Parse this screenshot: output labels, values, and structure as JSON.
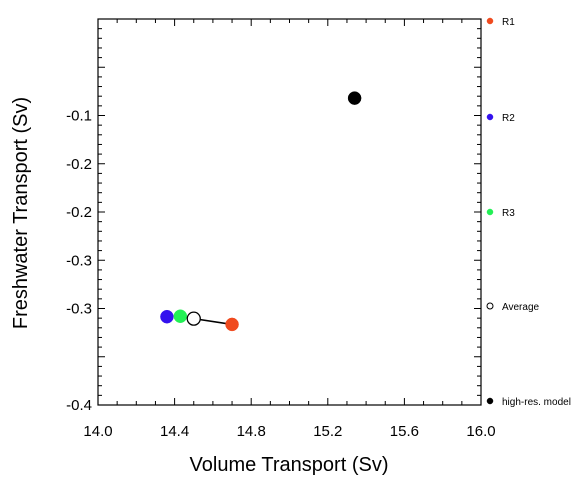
{
  "chart_data": {
    "type": "scatter",
    "title": "",
    "xlabel": "Volume Transport (Sv)",
    "ylabel": "Freshwater Transport (Sv)",
    "xlim": [
      14.0,
      16.0
    ],
    "ylim": [
      -0.4,
      0.0
    ],
    "x_major_ticks": [
      14.0,
      14.4,
      14.8,
      15.2,
      15.6,
      16.0
    ],
    "x_tick_labels": [
      "14.0",
      "14.4",
      "14.8",
      "15.2",
      "15.6",
      "16.0"
    ],
    "y_major_ticks": [
      -0.1,
      -0.2,
      -0.2,
      -0.3,
      -0.3,
      -0.4
    ],
    "y_tick_positions": [
      -0.1,
      -0.15,
      -0.2,
      -0.25,
      -0.3,
      -0.35,
      -0.4
    ],
    "y_tick_labels": [
      "-0.1",
      "-0.2",
      "-0.2",
      "-0.3",
      "-0.3",
      "-0.4"
    ],
    "y_label_positions": [
      -0.1,
      -0.15,
      -0.2,
      -0.25,
      -0.3,
      -0.4
    ],
    "grid": false,
    "legend_placement": "right",
    "series": [
      {
        "name": "R1",
        "x": 14.7,
        "y": -0.3165,
        "color": "#f04a1e",
        "filled": true
      },
      {
        "name": "R2",
        "x": 14.36,
        "y": -0.3085,
        "color": "#3311ee",
        "filled": true
      },
      {
        "name": "R3",
        "x": 14.43,
        "y": -0.308,
        "color": "#22f055",
        "filled": true
      },
      {
        "name": "Average",
        "x": 14.5,
        "y": -0.3105,
        "color": "#000000",
        "filled": false
      },
      {
        "name": "high-res. model",
        "x": 15.34,
        "y": -0.082,
        "color": "#000000",
        "filled": true
      }
    ],
    "connector_line": {
      "from": 3,
      "to": 0
    }
  }
}
